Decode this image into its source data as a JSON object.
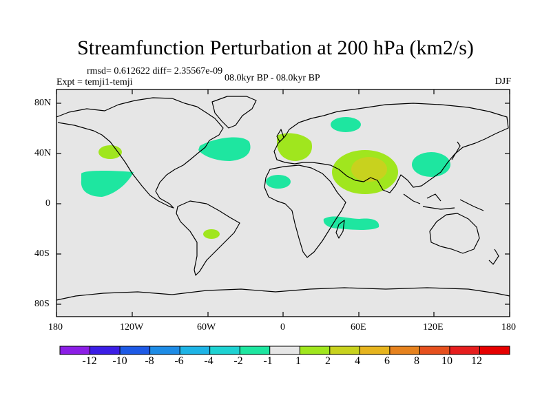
{
  "title": "Streamfunction Perturbation at 200 hPa (km2/s)",
  "stats": "rmsd= 0.612622 diff= 2.35567e-09",
  "experiment": "Expt = temji1-temji",
  "period": "08.0kyr BP - 08.0kyr BP",
  "season": "DJF",
  "y_axis_labels": [
    "80N",
    "40N",
    "0",
    "40S",
    "80S"
  ],
  "x_axis_labels": [
    "180",
    "120W",
    "60W",
    "0",
    "60E",
    "120E",
    "180"
  ],
  "colorbar": {
    "labels": [
      "-12",
      "-10",
      "-8",
      "-6",
      "-4",
      "-2",
      "-1",
      "1",
      "2",
      "4",
      "6",
      "8",
      "10",
      "12"
    ],
    "colors": [
      "#8c1ee6",
      "#3c1ee6",
      "#1e5ae6",
      "#1e8ce6",
      "#1eb4e6",
      "#1ed2d2",
      "#1ee6a0",
      "#e6e6e6",
      "#a0e61e",
      "#c8d21e",
      "#e6b41e",
      "#e6821e",
      "#e6501e",
      "#e61e1e",
      "#e60000"
    ]
  },
  "colors": {
    "ocean_background": "#e6e6e6",
    "negative_fill": "#1ee6a0",
    "positive_fill": "#a0e61e",
    "positive_fill_high": "#c8d21e"
  }
}
